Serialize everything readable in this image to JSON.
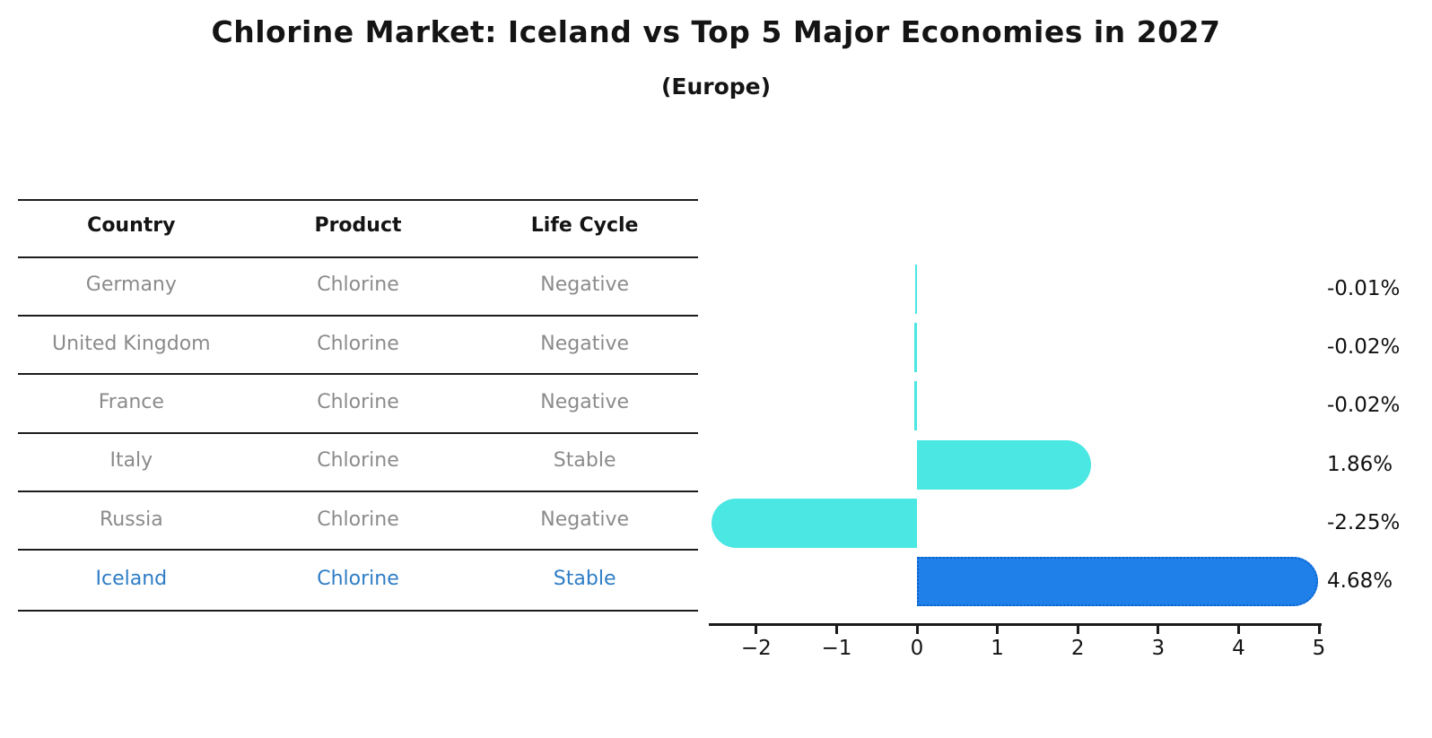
{
  "header": {
    "title": "Chlorine Market: Iceland vs Top 5 Major Economies in 2027",
    "subtitle": "(Europe)"
  },
  "table": {
    "headers": [
      "Country",
      "Product",
      "Life Cycle"
    ],
    "rows": [
      {
        "country": "Germany",
        "product": "Chlorine",
        "life_cycle": "Negative",
        "highlight": false
      },
      {
        "country": "United Kingdom",
        "product": "Chlorine",
        "life_cycle": "Negative",
        "highlight": false
      },
      {
        "country": "France",
        "product": "Chlorine",
        "life_cycle": "Negative",
        "highlight": false
      },
      {
        "country": "Italy",
        "product": "Chlorine",
        "life_cycle": "Stable",
        "highlight": false
      },
      {
        "country": "Russia",
        "product": "Chlorine",
        "life_cycle": "Negative",
        "highlight": false
      },
      {
        "country": "Iceland",
        "product": "Chlorine",
        "life_cycle": "Stable",
        "highlight": true
      }
    ]
  },
  "chart_data": {
    "type": "bar",
    "orientation": "horizontal",
    "title": "Chlorine Market: Iceland vs Top 5 Major Economies in 2027",
    "subtitle": "(Europe)",
    "categories": [
      "Germany",
      "United Kingdom",
      "France",
      "Italy",
      "Russia",
      "Iceland"
    ],
    "values": [
      -0.01,
      -0.02,
      -0.02,
      1.86,
      -2.25,
      4.68
    ],
    "value_labels": [
      "-0.01%",
      "-0.02%",
      "-0.02%",
      "1.86%",
      "-2.25%",
      "4.68%"
    ],
    "xlim": [
      -2.59,
      5.0
    ],
    "xticks": [
      -2,
      -1,
      0,
      1,
      2,
      3,
      4,
      5
    ],
    "xtick_labels": [
      "−2",
      "−1",
      "0",
      "1",
      "2",
      "3",
      "4",
      "5"
    ],
    "grid": false,
    "legend": null,
    "highlight_index": 5,
    "xlabel": "",
    "ylabel": ""
  },
  "colors": {
    "bar_default": "#4ae7e3",
    "bar_highlight_fill": "#1e80e8",
    "bar_highlight_border": "#0c62cc",
    "highlight_text": "#2e7dc6",
    "row_text": "#8b8b8b",
    "header_text": "#141414",
    "axis": "#1a1a1a"
  }
}
